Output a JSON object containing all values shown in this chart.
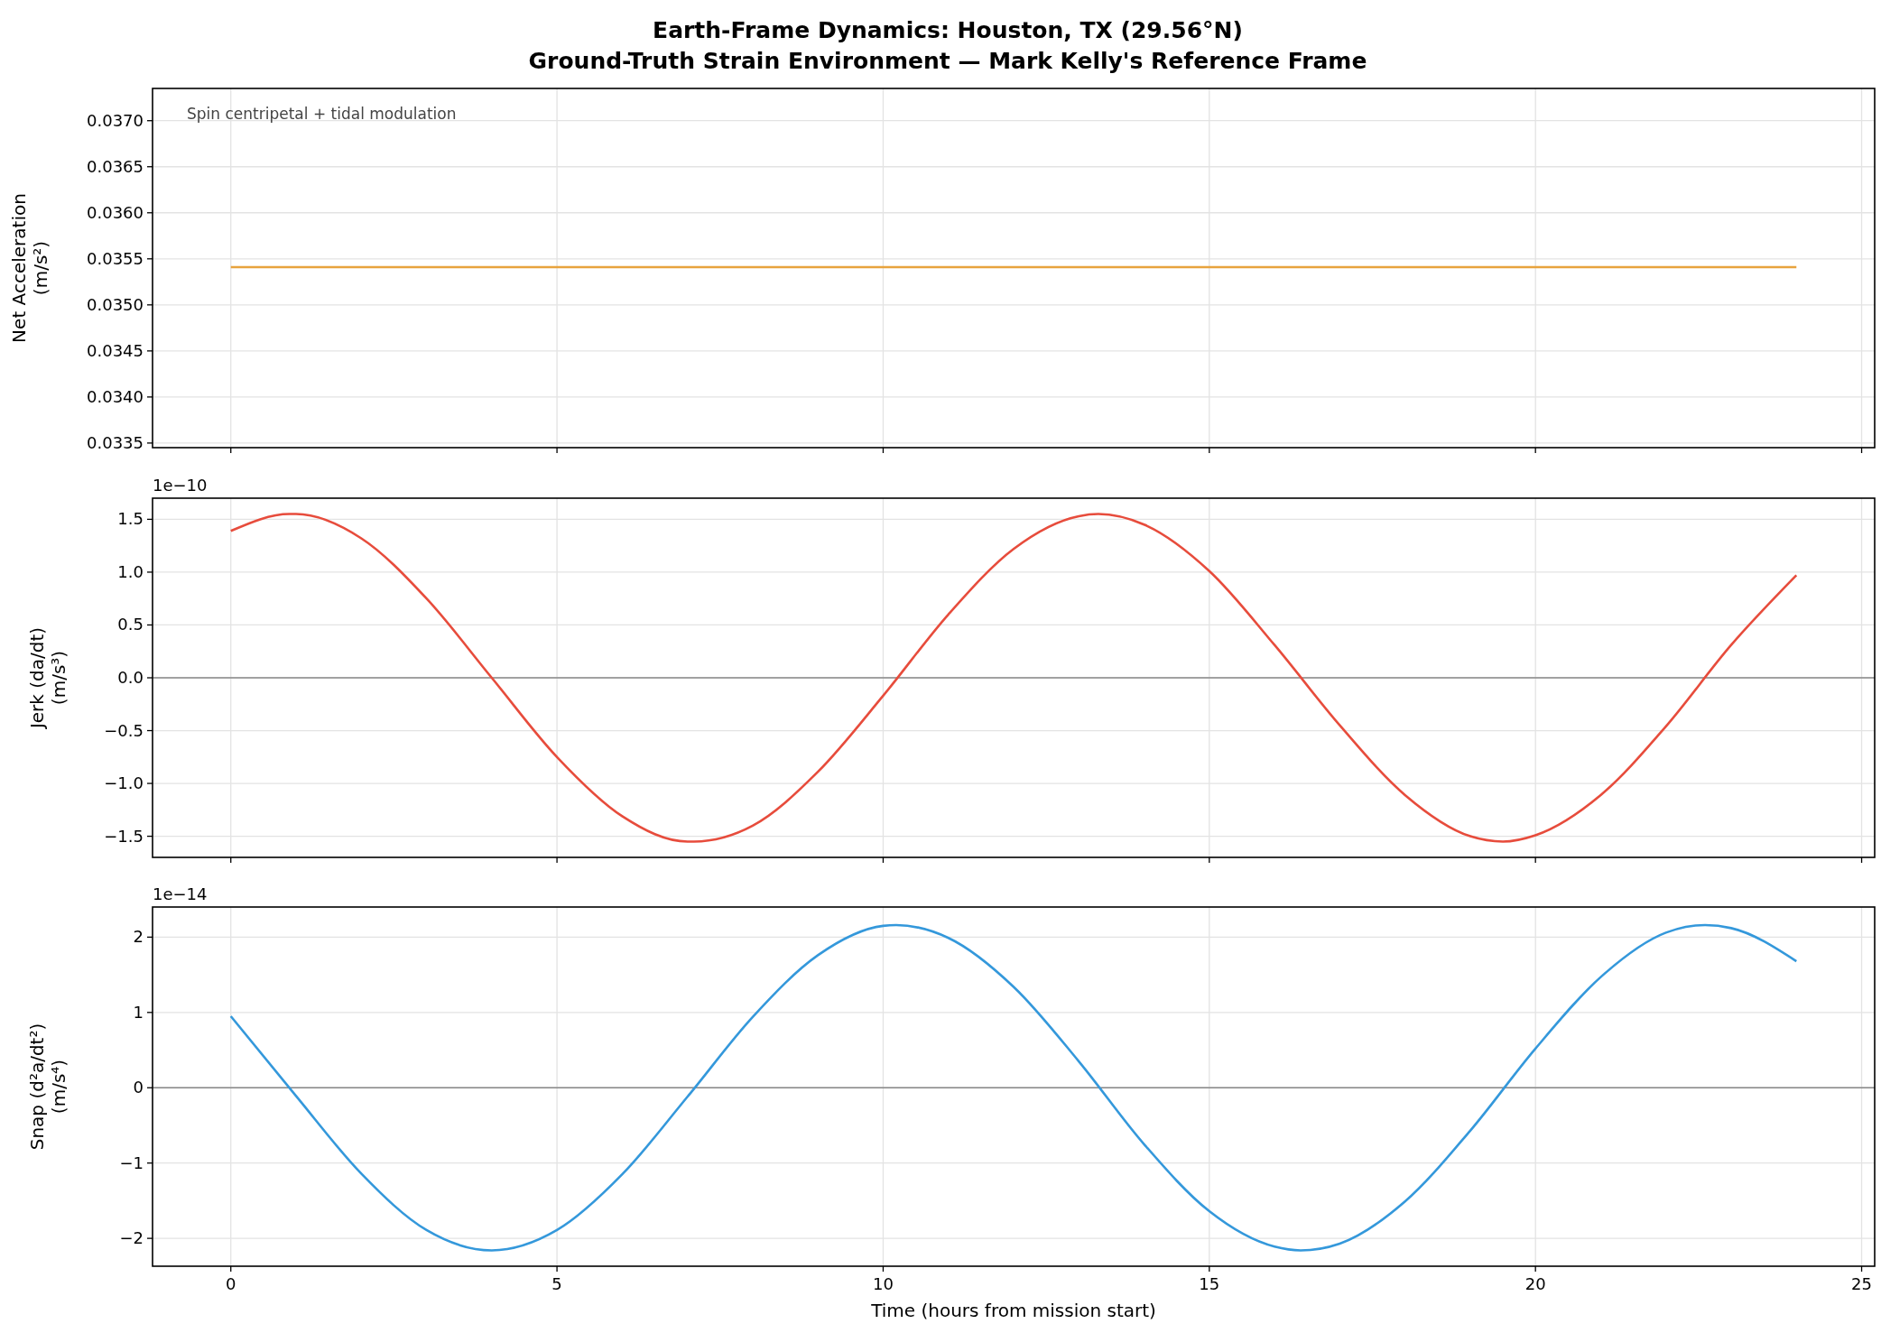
{
  "chart_data": [
    {
      "type": "line",
      "title": "Earth-Frame Dynamics: Houston, TX (29.56°N)",
      "subtitle": "Ground-Truth Strain Environment — Mark Kelly's Reference Frame",
      "ylabel": "Net Acceleration\n(m/s²)",
      "annotations": [
        "Spin centripetal + tidal modulation"
      ],
      "x": [
        0,
        24
      ],
      "series": [
        {
          "color": "#e8a33d",
          "values": [
            0.03541,
            0.03541
          ]
        }
      ],
      "xlim": [
        -1.2,
        25.2
      ],
      "xticks": [
        0,
        5,
        10,
        15,
        20,
        25
      ],
      "ylim": [
        0.03345,
        0.03735
      ],
      "yticks": [
        0.0335,
        {
          "value": 0.034,
          "label": "0.0340"
        },
        0.0345,
        {
          "value": 0.035,
          "label": "0.0350"
        },
        0.0355,
        {
          "value": 0.036,
          "label": "0.0360"
        },
        0.0365,
        {
          "value": 0.037,
          "label": "0.0370"
        }
      ],
      "grid": true,
      "tick_labels": "y"
    },
    {
      "type": "line",
      "ylabel": "Jerk (da/dt)\n(m/s³)",
      "annotations": [
        "1e−10"
      ],
      "x": [
        0,
        0.9,
        1,
        2,
        3,
        4,
        5,
        6,
        7,
        7.1,
        8,
        9,
        10,
        11,
        12,
        13,
        13.3,
        14,
        15,
        16,
        17,
        18,
        19,
        19.5,
        20,
        21,
        22,
        23,
        24
      ],
      "series": [
        {
          "color": "#e74c3c",
          "values": [
            1.39,
            1.55,
            1.55,
            1.32,
            0.75,
            0.0,
            -0.75,
            -1.31,
            -1.55,
            -1.55,
            -1.4,
            -0.89,
            -0.17,
            0.6,
            1.22,
            1.53,
            1.55,
            1.45,
            1.01,
            0.31,
            -0.45,
            -1.11,
            -1.5,
            -1.55,
            -1.49,
            -1.11,
            -0.46,
            0.31,
            0.97
          ]
        }
      ],
      "ref_lines": [
        {
          "axis": "y",
          "value": 0,
          "color": "#888888"
        }
      ],
      "xlim": [
        -1.2,
        25.2
      ],
      "xticks": [
        0,
        5,
        10,
        15,
        20,
        25
      ],
      "ylim": [
        -1.7,
        1.7
      ],
      "yticks": [
        {
          "value": -1.5,
          "label": "−1.5"
        },
        {
          "value": -1,
          "label": "−1.0"
        },
        {
          "value": -0.5,
          "label": "−0.5"
        },
        {
          "value": 0,
          "label": "0.0"
        },
        0.5,
        {
          "value": 1,
          "label": "1.0"
        },
        1.5
      ],
      "grid": true,
      "tick_labels": "y"
    },
    {
      "type": "line",
      "xlabel": "Time (hours from mission start)",
      "ylabel": "Snap (d²a/dt²)\n(m/s⁴)",
      "annotations": [
        "1e−14"
      ],
      "x": [
        0,
        1,
        2,
        3,
        4,
        5,
        6,
        7,
        8,
        9,
        10,
        10.2,
        11,
        12,
        13,
        14,
        15,
        16,
        16.4,
        17,
        18,
        19,
        20,
        21,
        22,
        22.6,
        23,
        24
      ],
      "series": [
        {
          "color": "#3498db",
          "values": [
            0.95,
            -0.11,
            -1.14,
            -1.89,
            -2.16,
            -1.89,
            -1.15,
            -0.12,
            0.94,
            1.76,
            2.15,
            2.16,
            1.99,
            1.34,
            0.35,
            -0.75,
            -1.64,
            -2.11,
            -2.16,
            -2.07,
            -1.51,
            -0.57,
            0.52,
            1.47,
            2.06,
            2.16,
            2.12,
            1.68
          ]
        }
      ],
      "ref_lines": [
        {
          "axis": "y",
          "value": 0,
          "color": "#888888"
        }
      ],
      "xlim": [
        -1.2,
        25.2
      ],
      "xticks": [
        0,
        5,
        10,
        15,
        20,
        25
      ],
      "ylim": [
        -2.37,
        2.4
      ],
      "yticks": [
        {
          "value": -2,
          "label": "−2"
        },
        {
          "value": -1,
          "label": "−1"
        },
        0,
        1,
        2
      ],
      "grid": true
    }
  ]
}
